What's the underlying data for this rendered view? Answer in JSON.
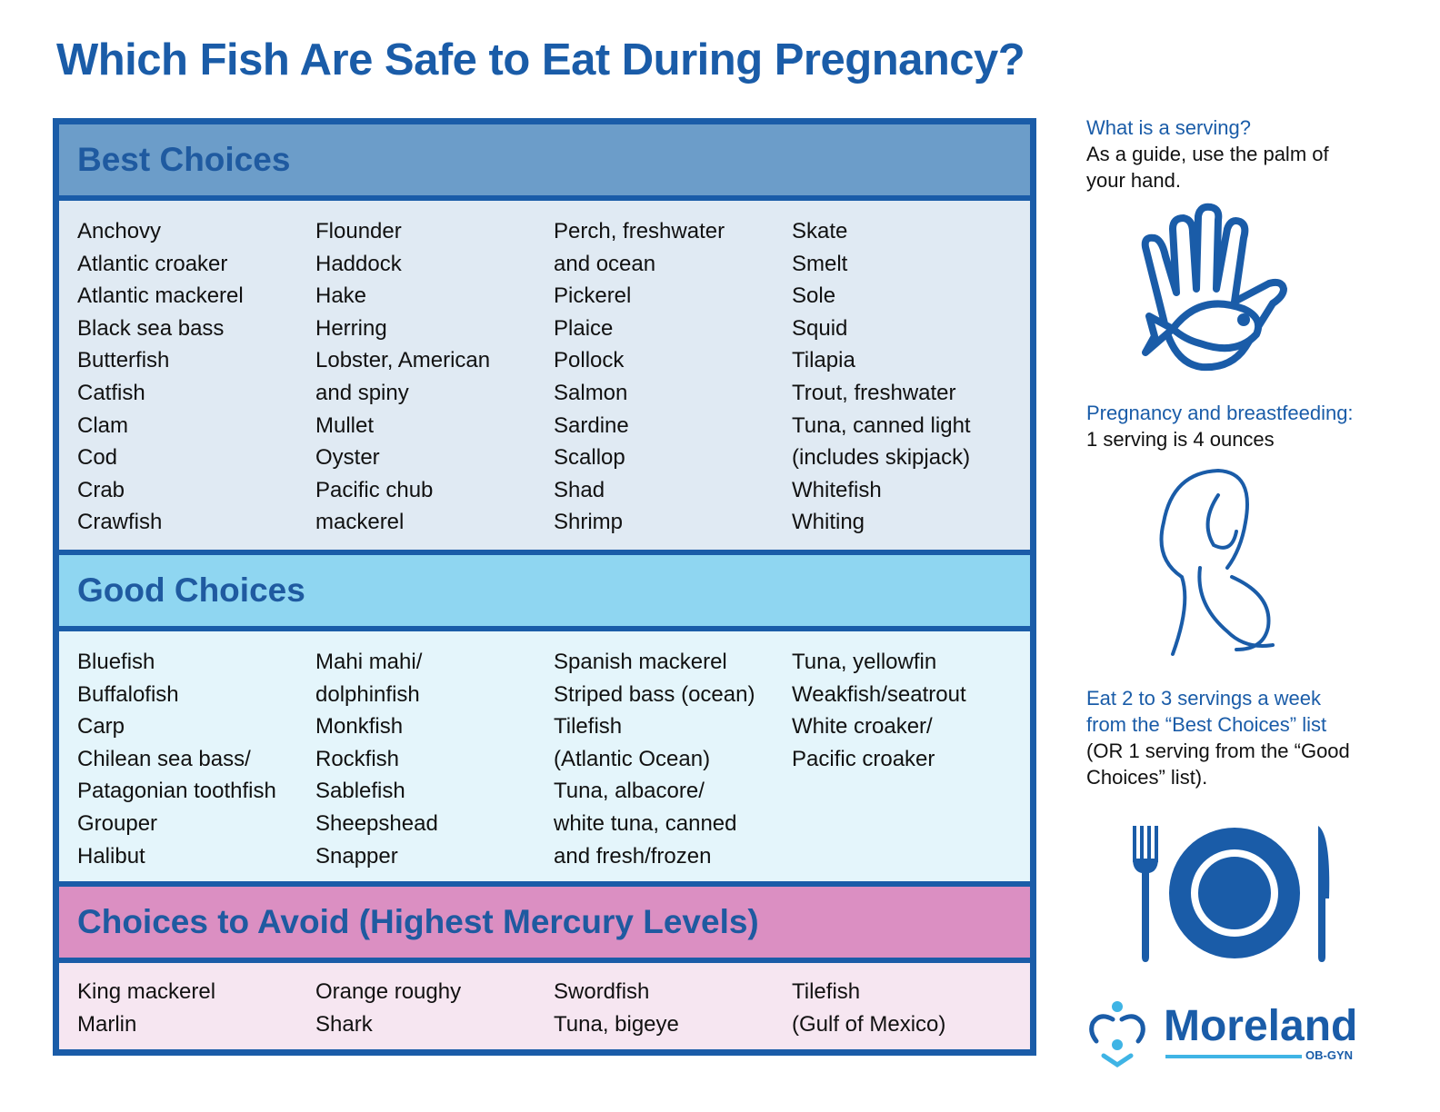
{
  "title": "Which Fish Are Safe to Eat During Pregnancy?",
  "sections": [
    {
      "heading": "Best Choices",
      "columns": [
        [
          "Anchovy",
          "Atlantic croaker",
          "Atlantic mackerel",
          "Black sea bass",
          "Butterfish",
          "Catfish",
          "Clam",
          "Cod",
          "Crab",
          "Crawfish"
        ],
        [
          "Flounder",
          "Haddock",
          "Hake",
          "Herring",
          "Lobster,  American",
          "and spiny",
          "Mullet",
          "Oyster",
          "Pacific chub",
          "mackerel"
        ],
        [
          "Perch, freshwater",
          "and ocean",
          "Pickerel",
          "Plaice",
          "Pollock",
          "Salmon",
          "Sardine",
          "Scallop",
          "Shad",
          "Shrimp"
        ],
        [
          "Skate",
          "Smelt",
          "Sole",
          "Squid",
          "Tilapia",
          "Trout, freshwater",
          "Tuna, canned light",
          "(includes skipjack)",
          "Whitefish",
          "Whiting"
        ]
      ]
    },
    {
      "heading": "Good Choices",
      "columns": [
        [
          "Bluefish",
          "Buffalofish",
          "Carp",
          "Chilean sea bass/",
          "Patagonian toothfish",
          "Grouper",
          "Halibut"
        ],
        [
          "Mahi mahi/",
          "dolphinfish",
          "Monkfish",
          "Rockfish",
          "Sablefish",
          "Sheepshead",
          "Snapper"
        ],
        [
          "Spanish mackerel",
          "Striped bass (ocean)",
          "Tilefish",
          "(Atlantic Ocean)",
          "Tuna, albacore/",
          "white tuna, canned",
          "and fresh/frozen"
        ],
        [
          "Tuna, yellowfin",
          "Weakfish/seatrout",
          "White croaker/",
          "Pacific croaker"
        ]
      ]
    },
    {
      "heading": "Choices to Avoid (Highest Mercury Levels)",
      "columns": [
        [
          "King mackerel",
          "Marlin"
        ],
        [
          "Orange roughy",
          "Shark"
        ],
        [
          "Swordfish",
          "Tuna, bigeye"
        ],
        [
          "Tilefish",
          "(Gulf of Mexico)"
        ]
      ]
    }
  ],
  "sidebar": {
    "serving_q": "What is a serving?",
    "serving_a": "As a guide, use the palm of your hand.",
    "preg_q": "Pregnancy and breastfeeding:",
    "preg_a": "1 serving is 4 ounces",
    "eat_q": "Eat 2 to 3 servings a week from the “Best Choices” list",
    "eat_a": "(OR 1 serving from the “Good Choices” list).",
    "icons": [
      "hand-with-fish-icon",
      "pregnant-woman-icon",
      "plate-fork-knife-icon"
    ]
  },
  "logo": {
    "name": "Moreland",
    "sub": "OB-GYN"
  },
  "colors": {
    "primary": "#1a5ca8",
    "best": "#6c9dc9",
    "good": "#8fd6f1",
    "avoid": "#db8fc2",
    "accent": "#3fb4e5"
  }
}
